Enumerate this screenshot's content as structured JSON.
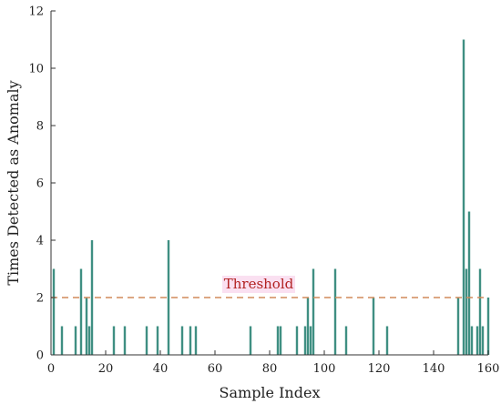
{
  "chart_data": {
    "type": "bar",
    "xlabel": "Sample Index",
    "ylabel": "Times Detected as Anomaly",
    "xlim": [
      0,
      160
    ],
    "ylim": [
      0,
      12
    ],
    "xticks": [
      0,
      20,
      40,
      60,
      80,
      100,
      120,
      140,
      160
    ],
    "yticks": [
      0,
      2,
      4,
      6,
      8,
      10,
      12
    ],
    "threshold": {
      "value": 2,
      "label": "Threshold",
      "color": "#d08a5a",
      "label_color": "#b22222",
      "label_bg": "#f6c6e6"
    },
    "bar_color": "#3f8f82",
    "x": [
      1,
      4,
      9,
      11,
      13,
      14,
      15,
      23,
      27,
      35,
      39,
      43,
      48,
      51,
      53,
      73,
      83,
      84,
      90,
      93,
      94,
      95,
      96,
      104,
      108,
      118,
      123,
      149,
      151,
      152,
      153,
      154,
      156,
      157,
      158,
      160
    ],
    "values": [
      3,
      1,
      1,
      3,
      2,
      1,
      4,
      1,
      1,
      1,
      1,
      4,
      1,
      1,
      1,
      1,
      1,
      1,
      1,
      1,
      2,
      1,
      3,
      3,
      1,
      2,
      1,
      2,
      11,
      3,
      5,
      1,
      1,
      3,
      1,
      2
    ]
  }
}
